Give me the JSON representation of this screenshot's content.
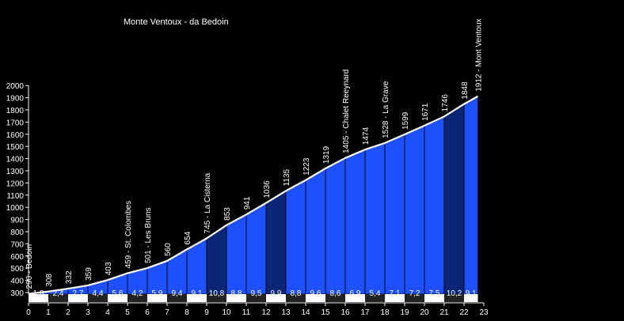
{
  "chart_data": {
    "type": "area",
    "title": "Monte Ventoux - da Bedoin",
    "xlabel": "",
    "ylabel": "",
    "xlim": [
      0,
      23
    ],
    "ylim": [
      300,
      2000
    ],
    "x_ticks": [
      0,
      1,
      2,
      3,
      4,
      5,
      6,
      7,
      8,
      9,
      10,
      11,
      12,
      13,
      14,
      15,
      16,
      17,
      18,
      19,
      20,
      21,
      22,
      23
    ],
    "y_ticks": [
      300,
      400,
      500,
      600,
      700,
      800,
      900,
      1000,
      1100,
      1200,
      1300,
      1400,
      1500,
      1600,
      1700,
      1800,
      1900,
      2000
    ],
    "x": [
      0,
      1,
      2,
      3,
      4,
      5,
      6,
      7,
      8,
      9,
      10,
      11,
      12,
      13,
      14,
      15,
      16,
      17,
      18,
      19,
      20,
      21,
      22,
      22.7
    ],
    "elevation": [
      290,
      308,
      332,
      359,
      403,
      459,
      501,
      560,
      654,
      745,
      853,
      941,
      1036,
      1135,
      1223,
      1319,
      1405,
      1474,
      1528,
      1599,
      1671,
      1746,
      1848,
      1912
    ],
    "point_labels": [
      "290 - Bedoin",
      "308",
      "332",
      "359",
      "403",
      "459 - St. Colombes",
      "501 - Les Bruns",
      "560",
      "654",
      "745 - La Cisterna",
      "853",
      "941",
      "1036",
      "1135",
      "1223",
      "1319",
      "1405 - Chalet Reeynard",
      "1474",
      "1528 - La Grave",
      "1599",
      "1671",
      "1746",
      "1848",
      "1912 - Mont Ventoux"
    ],
    "gradients": [
      "1,8",
      "2,4",
      "2,7",
      "4,4",
      "5,6",
      "4,2",
      "5,9",
      "9,4",
      "9,1",
      "10,8",
      "8,8",
      "9,5",
      "9,9",
      "8,8",
      "9,6",
      "8,6",
      "6,9",
      "5,4",
      "7,1",
      "7,2",
      "7,5",
      "10,2",
      "9,1"
    ],
    "colors": {
      "background": "#000000",
      "segment_default": "#1e50ff",
      "segment_steep": "#0b2675",
      "line": "#ffffff",
      "text": "#ffffff"
    },
    "steep_threshold": 9.9
  }
}
